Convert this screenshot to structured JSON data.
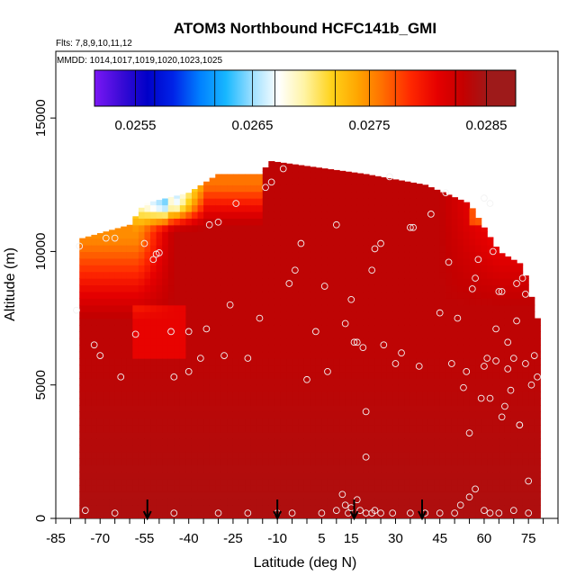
{
  "chart_data": {
    "type": "heatmap",
    "title": "ATOM3 Northbound HCFC141b_GMI",
    "subtitle_flights": "Flts: 7,8,9,10,11,12",
    "subtitle_dates": "MMDD: 1014,1017,1019,1020,1023,1025",
    "xlabel": "Latitude (deg N)",
    "ylabel": "Altitude (m)",
    "xlim": [
      -85,
      85
    ],
    "ylim": [
      0,
      17500
    ],
    "x_ticks": [
      -85,
      -70,
      -55,
      -40,
      -25,
      -10,
      5,
      15,
      30,
      45,
      60,
      75
    ],
    "x_tick_labels": [
      "-85",
      "-70",
      "-55",
      "-40",
      "-25",
      "-10",
      "5",
      "15",
      "30",
      "45",
      "60",
      "75"
    ],
    "y_ticks": [
      0,
      5000,
      10000,
      15000
    ],
    "y_tick_labels": [
      "0",
      "5000",
      "10000",
      "15000"
    ],
    "colorbar": {
      "min": 0.02515,
      "max": 0.02875,
      "ticks": [
        0.0255,
        0.0265,
        0.0275,
        0.0285
      ],
      "tick_labels": [
        "0.0255",
        "0.0265",
        "0.0275",
        "0.0285"
      ],
      "colors": [
        "#7b17f5",
        "#3a0bd6",
        "#0000c8",
        "#0024e8",
        "#0080ff",
        "#18b8ff",
        "#9fe0ff",
        "#ffffff",
        "#fff3a0",
        "#ffd21a",
        "#ffa500",
        "#ff6a00",
        "#ff2800",
        "#e60000",
        "#c40000",
        "#9e1a1a"
      ]
    },
    "field_extent": [
      {
        "lat": -76,
        "top": 10500
      },
      {
        "lat": -60,
        "top": 11000
      },
      {
        "lat": -55,
        "top": 11800
      },
      {
        "lat": -40,
        "top": 12200
      },
      {
        "lat": -30,
        "top": 12900
      },
      {
        "lat": -15,
        "top": 12900
      },
      {
        "lat": -13,
        "top": 13400
      },
      {
        "lat": 20,
        "top": 12900
      },
      {
        "lat": 40,
        "top": 12500
      },
      {
        "lat": 55,
        "top": 11800
      },
      {
        "lat": 65,
        "top": 10000
      },
      {
        "lat": 73,
        "top": 9500
      },
      {
        "lat": 78,
        "top": 7500
      }
    ],
    "field_lat_range": [
      -77,
      78
    ],
    "sample_points": [
      [
        -77,
        10200
      ],
      [
        -78,
        7800
      ],
      [
        -72,
        6500
      ],
      [
        -70,
        6100
      ],
      [
        -68,
        10500
      ],
      [
        -65,
        10500
      ],
      [
        -63,
        5300
      ],
      [
        -58,
        6900
      ],
      [
        -55,
        10300
      ],
      [
        -52,
        9700
      ],
      [
        -51,
        9900
      ],
      [
        -50,
        9950
      ],
      [
        -46,
        7000
      ],
      [
        -45,
        5300
      ],
      [
        -40,
        5500
      ],
      [
        -40,
        7000
      ],
      [
        -36,
        6000
      ],
      [
        -34,
        7100
      ],
      [
        -33,
        11000
      ],
      [
        -30,
        11100
      ],
      [
        -28,
        6100
      ],
      [
        -26,
        8000
      ],
      [
        -24,
        11800
      ],
      [
        -20,
        6000
      ],
      [
        -16,
        7500
      ],
      [
        -14,
        12400
      ],
      [
        -12,
        12600
      ],
      [
        -8,
        13100
      ],
      [
        -6,
        8800
      ],
      [
        -4,
        9300
      ],
      [
        -2,
        10300
      ],
      [
        0,
        5200
      ],
      [
        3,
        7000
      ],
      [
        6,
        8700
      ],
      [
        7,
        5500
      ],
      [
        10,
        11000
      ],
      [
        13,
        7300
      ],
      [
        15,
        8200
      ],
      [
        16,
        6600
      ],
      [
        17,
        6600
      ],
      [
        19,
        6400
      ],
      [
        20,
        2300
      ],
      [
        20,
        4000
      ],
      [
        22,
        9300
      ],
      [
        23,
        10100
      ],
      [
        25,
        10300
      ],
      [
        26,
        6500
      ],
      [
        28,
        12800
      ],
      [
        30,
        5800
      ],
      [
        32,
        6200
      ],
      [
        35,
        10900
      ],
      [
        36,
        10900
      ],
      [
        38,
        5700
      ],
      [
        42,
        11400
      ],
      [
        45,
        7700
      ],
      [
        47,
        12200
      ],
      [
        48,
        9600
      ],
      [
        49,
        5800
      ],
      [
        51,
        7500
      ],
      [
        53,
        4900
      ],
      [
        54,
        5500
      ],
      [
        55,
        3200
      ],
      [
        56,
        8600
      ],
      [
        57,
        9000
      ],
      [
        58,
        9700
      ],
      [
        59,
        4500
      ],
      [
        60,
        5700
      ],
      [
        60,
        12000
      ],
      [
        61,
        6000
      ],
      [
        62,
        4500
      ],
      [
        62,
        11800
      ],
      [
        63,
        10000
      ],
      [
        64,
        7100
      ],
      [
        64,
        5900
      ],
      [
        65,
        8500
      ],
      [
        66,
        8500
      ],
      [
        66,
        3800
      ],
      [
        67,
        4200
      ],
      [
        68,
        6600
      ],
      [
        68,
        5600
      ],
      [
        69,
        4800
      ],
      [
        70,
        6000
      ],
      [
        71,
        7400
      ],
      [
        71,
        8800
      ],
      [
        72,
        3500
      ],
      [
        72,
        3500
      ],
      [
        73,
        9000
      ],
      [
        74,
        8400
      ],
      [
        74,
        5800
      ],
      [
        75,
        1400
      ],
      [
        76,
        5000
      ],
      [
        77,
        6100
      ],
      [
        78,
        5300
      ],
      [
        -75,
        300
      ],
      [
        -65,
        200
      ],
      [
        -45,
        200
      ],
      [
        -30,
        200
      ],
      [
        -20,
        200
      ],
      [
        -10,
        200
      ],
      [
        -5,
        200
      ],
      [
        5,
        200
      ],
      [
        10,
        300
      ],
      [
        12,
        900
      ],
      [
        13,
        500
      ],
      [
        14,
        200
      ],
      [
        15,
        400
      ],
      [
        17,
        700
      ],
      [
        18,
        300
      ],
      [
        20,
        200
      ],
      [
        22,
        200
      ],
      [
        23,
        300
      ],
      [
        25,
        200
      ],
      [
        29,
        200
      ],
      [
        35,
        200
      ],
      [
        40,
        200
      ],
      [
        45,
        200
      ],
      [
        50,
        200
      ],
      [
        52,
        500
      ],
      [
        55,
        800
      ],
      [
        57,
        1100
      ],
      [
        60,
        300
      ],
      [
        62,
        200
      ],
      [
        65,
        200
      ],
      [
        70,
        300
      ],
      [
        75,
        200
      ]
    ],
    "flight_markers_lat": [
      -54,
      -10,
      16,
      39
    ]
  }
}
